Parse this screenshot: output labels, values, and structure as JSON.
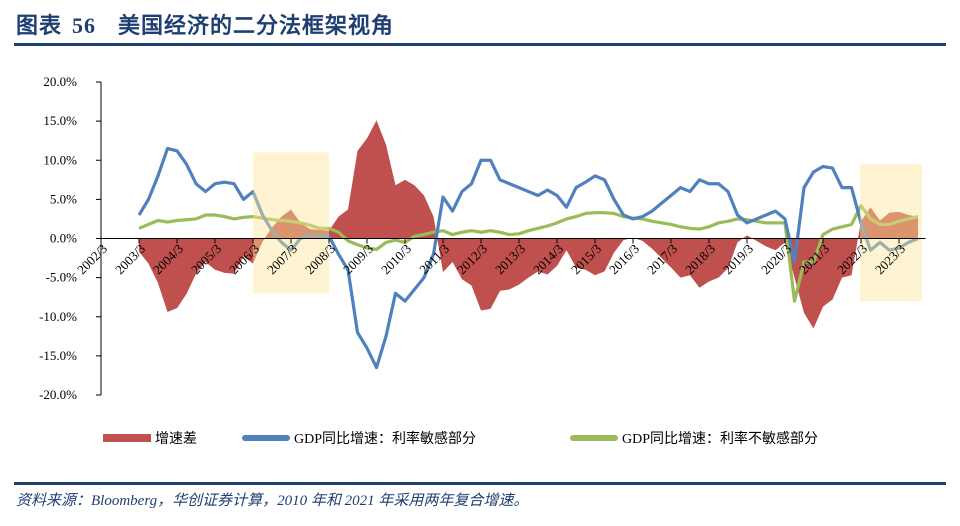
{
  "header": {
    "label": "图表",
    "number": "56",
    "title": "美国经济的二分法框架视角"
  },
  "footnote": "资料来源：Bloomberg，华创证券计算，2010 年和 2021 年采用两年复合增速。",
  "colors": {
    "spread": "#C0504D",
    "sensitive": "#4F81BD",
    "insensitive": "#9BBB59",
    "highlight": "#FFE699",
    "rule": "#1F3F73"
  },
  "chart_data": {
    "type": "line",
    "title": "",
    "xlabel": "",
    "ylabel": "",
    "ylim": [
      -20,
      20
    ],
    "y_ticks": [
      "20.0%",
      "15.0%",
      "10.0%",
      "5.0%",
      "0.0%",
      "-5.0%",
      "-10.0%",
      "-15.0%",
      "-20.0%"
    ],
    "x_ticks": [
      "2002/3",
      "2003/3",
      "2004/3",
      "2005/3",
      "2006/3",
      "2007/3",
      "2008/3",
      "2009/3",
      "2010/3",
      "2011/3",
      "2012/3",
      "2013/3",
      "2014/3",
      "2015/3",
      "2016/3",
      "2017/3",
      "2018/3",
      "2019/3",
      "2020/3",
      "2021/3",
      "2022/3",
      "2023/3"
    ],
    "x_start": "2003Q1",
    "frequency": "quarterly",
    "highlights": [
      {
        "from": "2006/3",
        "to": "2008/3",
        "ylim": [
          -7,
          11
        ]
      },
      {
        "from": "2022/3",
        "to": "2023/Q4",
        "ylim": [
          -8,
          9.5
        ]
      }
    ],
    "legend_position": "bottom",
    "series": [
      {
        "name": "增速差",
        "type": "area",
        "color": "#C0504D",
        "values": [
          -1.7,
          -3.2,
          -5.7,
          -9.4,
          -8.9,
          -7.1,
          -4.5,
          -3,
          -4,
          -4.4,
          -4.5,
          -2.3,
          -3.2,
          -0.4,
          1.4,
          2.8,
          3.7,
          2,
          1.2,
          1.1,
          1,
          2.8,
          3.7,
          11.2,
          12.8,
          15.1,
          12,
          6.8,
          7.5,
          6.8,
          5.5,
          2.8,
          -4.3,
          -3,
          -5.2,
          -6,
          -9.2,
          -9,
          -6.7,
          -6.5,
          -5.9,
          -5,
          -4.2,
          -4.6,
          -3.5,
          -1.5,
          -3.7,
          -4,
          -4.7,
          -4.2,
          -1.8,
          -0.2,
          0.1,
          -0.3,
          -1.3,
          -2.5,
          -3.7,
          -5,
          -4.7,
          -6.3,
          -5.5,
          -5,
          -3.8,
          -0.5,
          0.4,
          -0.3,
          -1,
          -1.5,
          -0.5,
          -5,
          -9.5,
          -11.5,
          -8.7,
          -7.8,
          -5,
          -4.7,
          2.2,
          4,
          2.3,
          3.3,
          3.4,
          3,
          2.8
        ]
      },
      {
        "name": "GDP同比增速：利率敏感部分",
        "type": "line",
        "color": "#4F81BD",
        "values": [
          3,
          5,
          8,
          11.5,
          11.2,
          9.5,
          7,
          6,
          7,
          7.2,
          7,
          5,
          6,
          3,
          1,
          -0.5,
          -1.5,
          0,
          0.5,
          0.2,
          0.3,
          -2,
          -4,
          -12,
          -14,
          -16.5,
          -12.5,
          -7,
          -8,
          -6.5,
          -5,
          -2,
          5.3,
          3.5,
          6,
          7,
          10,
          10,
          7.5,
          7,
          6.5,
          6,
          5.5,
          6.2,
          5.5,
          4,
          6.5,
          7.2,
          8,
          7.5,
          5,
          3,
          2.5,
          2.8,
          3.5,
          4.5,
          5.5,
          6.5,
          6,
          7.5,
          7,
          7,
          6,
          3,
          2,
          2.5,
          3,
          3.5,
          2.5,
          -3,
          6.5,
          8.5,
          9.2,
          9,
          6.5,
          6.5,
          2,
          -1.5,
          -0.5,
          -1.5,
          -1.2,
          -0.5,
          0
        ]
      },
      {
        "name": "GDP同比增速：利率不敏感部分",
        "type": "line",
        "color": "#9BBB59",
        "values": [
          1.3,
          1.8,
          2.3,
          2.1,
          2.3,
          2.4,
          2.5,
          3,
          3,
          2.8,
          2.5,
          2.7,
          2.8,
          2.6,
          2.4,
          2.3,
          2.2,
          2,
          1.7,
          1.3,
          1.3,
          0.8,
          -0.3,
          -0.8,
          -1.2,
          -1.4,
          -0.5,
          -0.2,
          -0.5,
          0.3,
          0.5,
          0.8,
          1,
          0.5,
          0.8,
          1,
          0.8,
          1,
          0.8,
          0.5,
          0.6,
          1,
          1.3,
          1.6,
          2,
          2.5,
          2.8,
          3.2,
          3.3,
          3.3,
          3.2,
          2.8,
          2.6,
          2.5,
          2.2,
          2,
          1.8,
          1.5,
          1.3,
          1.2,
          1.5,
          2,
          2.2,
          2.5,
          2.4,
          2.2,
          2,
          2,
          2,
          -8,
          -3,
          -3,
          0.5,
          1.2,
          1.5,
          1.8,
          4.2,
          2.5,
          1.8,
          1.8,
          2.2,
          2.5,
          2.8
        ]
      }
    ]
  }
}
